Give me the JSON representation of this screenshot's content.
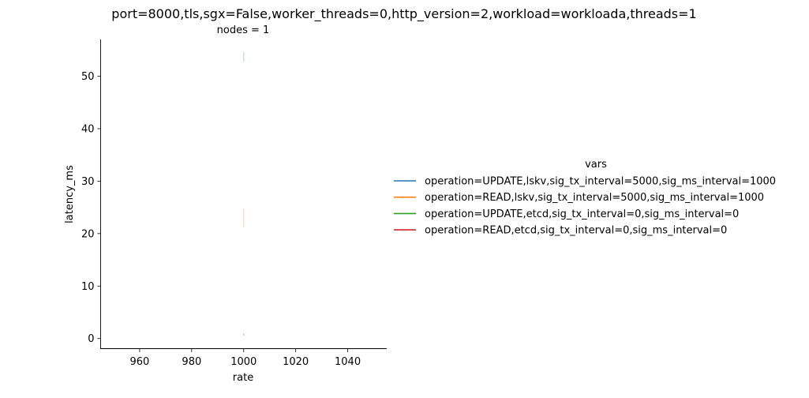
{
  "chart_data": {
    "type": "line",
    "title": "port=8000,tls,sgx=False,worker_threads=0,http_version=2,workload=workloada,threads=1",
    "facet_title": "nodes = 1",
    "xlabel": "rate",
    "ylabel": "latency_ms",
    "xlim": [
      945,
      1055
    ],
    "ylim": [
      -2,
      57
    ],
    "x_ticks": [
      960,
      980,
      1000,
      1020,
      1040
    ],
    "y_ticks": [
      0,
      10,
      20,
      30,
      40,
      50
    ],
    "grid": false,
    "legend": {
      "title": "vars",
      "placement": "right"
    },
    "series": [
      {
        "name": "operation=UPDATE,lskv,sig_tx_interval=5000,sig_ms_interval=1000",
        "color": "#1f77b4",
        "points": [
          {
            "x": 1000,
            "y_low": 52.8,
            "y_high": 54.6
          }
        ]
      },
      {
        "name": "operation=READ,lskv,sig_tx_interval=5000,sig_ms_interval=1000",
        "color": "#ff7f0e",
        "points": [
          {
            "x": 1000,
            "y_low": 21.2,
            "y_high": 24.8
          }
        ]
      },
      {
        "name": "operation=UPDATE,etcd,sig_tx_interval=0,sig_ms_interval=0",
        "color": "#2ca02c",
        "points": [
          {
            "x": 1000,
            "y_low": 0.6,
            "y_high": 0.9
          }
        ]
      },
      {
        "name": "operation=READ,etcd,sig_tx_interval=0,sig_ms_interval=0",
        "color": "#d62728",
        "points": [
          {
            "x": 1000,
            "y_low": 0.6,
            "y_high": 0.9
          }
        ]
      }
    ]
  }
}
